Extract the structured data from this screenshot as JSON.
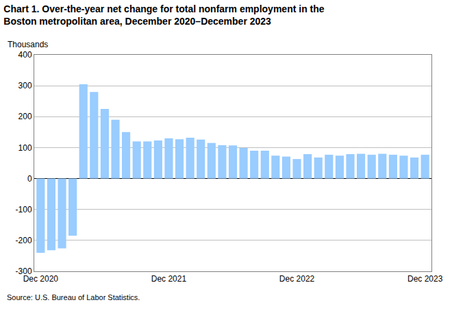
{
  "chart_data": {
    "type": "bar",
    "title": [
      "Chart 1. Over-the-year net change for total nonfarm employment in the",
      "Boston metropolitan area, December 2020–December 2023"
    ],
    "y_label": "Thousands",
    "source": "Source: U.S. Bureau of Labor Statistics.",
    "categories": [
      "Dec 2020",
      null,
      null,
      null,
      null,
      null,
      null,
      null,
      null,
      null,
      null,
      null,
      "Dec 2021",
      null,
      null,
      null,
      null,
      null,
      null,
      null,
      null,
      null,
      null,
      null,
      "Dec 2022",
      null,
      null,
      null,
      null,
      null,
      null,
      null,
      null,
      null,
      null,
      null,
      "Dec 2023"
    ],
    "values": [
      -240,
      -232,
      -226,
      -185,
      305,
      280,
      225,
      190,
      150,
      120,
      120,
      123,
      130,
      127,
      132,
      126,
      115,
      108,
      107,
      99,
      90,
      90,
      74,
      71,
      63,
      79,
      68,
      77,
      74,
      79,
      80,
      77,
      80,
      77,
      74,
      68,
      77
    ],
    "color": "#99ccff",
    "ylim": [
      -300,
      400
    ],
    "yticks": [
      -300,
      -200,
      -100,
      0,
      100,
      200,
      300,
      400
    ],
    "grid": true
  }
}
